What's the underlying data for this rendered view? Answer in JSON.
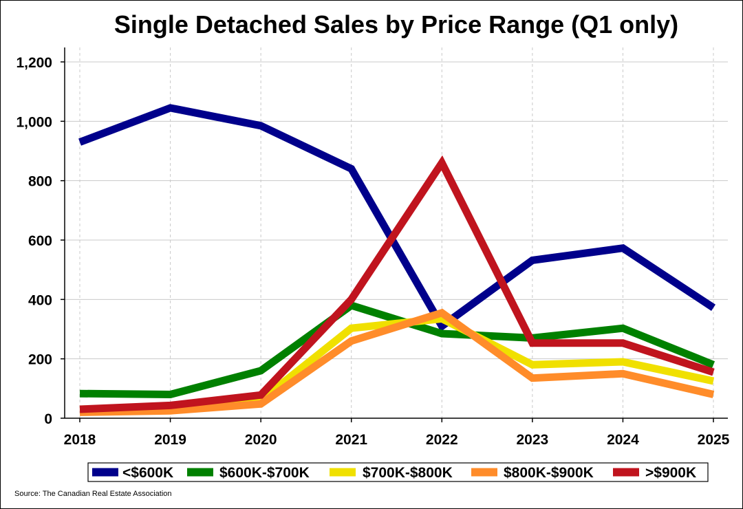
{
  "chart_data": {
    "type": "line",
    "title": "Single Detached Sales by Price Range (Q1 only)",
    "source": "Source: The Canadian Real Estate Association",
    "xlabel": "",
    "ylabel": "",
    "x": [
      "2018",
      "2019",
      "2020",
      "2021",
      "2022",
      "2023",
      "2024",
      "2025"
    ],
    "ylim": [
      0,
      1200
    ],
    "yticks": [
      0,
      200,
      400,
      600,
      800,
      1000,
      1200
    ],
    "ytick_labels": [
      "0",
      "200",
      "400",
      "600",
      "800",
      "1,000",
      "1,200"
    ],
    "grid": "horizontal solid, vertical dashed",
    "legend_position": "bottom",
    "series": [
      {
        "name": "<$600K",
        "color": "#00008B",
        "values": [
          930,
          1045,
          985,
          840,
          310,
          532,
          573,
          372
        ]
      },
      {
        "name": "$600K-$700K",
        "color": "#008000",
        "values": [
          83,
          80,
          160,
          380,
          285,
          270,
          303,
          180
        ]
      },
      {
        "name": "$700K-$800K",
        "color": "#F0E000",
        "values": [
          30,
          35,
          60,
          303,
          335,
          180,
          190,
          125
        ]
      },
      {
        "name": "$800K-$900K",
        "color": "#FF8C2A",
        "values": [
          20,
          25,
          48,
          260,
          355,
          135,
          150,
          80
        ]
      },
      {
        "name": ">$900K",
        "color": "#C0141E",
        "values": [
          30,
          43,
          78,
          400,
          860,
          253,
          253,
          155
        ]
      }
    ]
  }
}
